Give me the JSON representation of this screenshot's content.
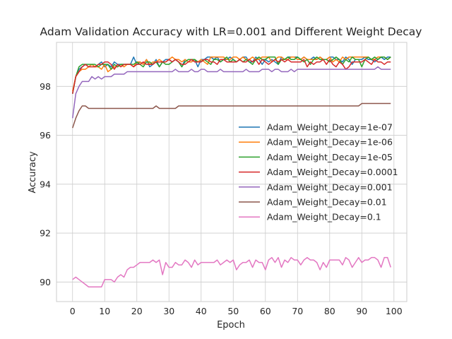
{
  "chart_data": {
    "type": "line",
    "title": "Adam Validation Accuracy with LR=0.001 and Different Weight Decay",
    "xlabel": "Epoch",
    "ylabel": "Accuracy",
    "xlim": [
      -5,
      104
    ],
    "ylim": [
      89.2,
      99.8
    ],
    "xticks": [
      0,
      10,
      20,
      30,
      40,
      50,
      60,
      70,
      80,
      90,
      100
    ],
    "yticks": [
      90,
      92,
      94,
      96,
      98
    ],
    "grid": true,
    "legend_position": "center-right",
    "series": [
      {
        "name": "Adam_Weight_Decay=1e-07",
        "color": "#1f77b4",
        "values": [
          97.7,
          98.4,
          98.7,
          98.8,
          98.9,
          98.8,
          98.9,
          98.8,
          98.9,
          99.0,
          98.8,
          98.9,
          98.8,
          99.0,
          98.9,
          98.9,
          98.9,
          98.9,
          98.9,
          99.2,
          98.9,
          99.0,
          98.9,
          99.1,
          98.8,
          98.9,
          99.1,
          98.8,
          99.0,
          99.1,
          99.1,
          99.0,
          99.1,
          99.0,
          98.8,
          99.1,
          99.0,
          99.0,
          99.1,
          98.8,
          99.1,
          99.1,
          99.2,
          99.2,
          99.1,
          99.2,
          99.0,
          99.1,
          99.1,
          99.2,
          99.1,
          99.0,
          99.1,
          99.2,
          99.2,
          99.0,
          99.0,
          99.2,
          99.1,
          98.9,
          99.1,
          99.0,
          99.1,
          99.0,
          98.9,
          99.2,
          99.1,
          99.2,
          99.2,
          99.2,
          99.2,
          99.1,
          99.2,
          99.1,
          99.1,
          99.2,
          99.1,
          99.2,
          99.1,
          99.1,
          99.2,
          99.2,
          99.1,
          99.1,
          99.0,
          99.2,
          99.1,
          98.9,
          99.1,
          99.1,
          99.1,
          99.2,
          99.1,
          99.1,
          99.0,
          99.1,
          99.2,
          99.1,
          99.2,
          99.2
        ]
      },
      {
        "name": "Adam_Weight_Decay=1e-06",
        "color": "#ff7f0e",
        "values": [
          97.8,
          98.4,
          98.6,
          98.7,
          98.7,
          98.8,
          98.9,
          98.8,
          98.8,
          98.7,
          98.9,
          98.6,
          98.7,
          98.8,
          98.8,
          98.9,
          98.8,
          98.9,
          98.9,
          98.8,
          99.0,
          99.0,
          98.9,
          99.1,
          98.9,
          99.0,
          99.0,
          99.1,
          99.0,
          99.0,
          99.1,
          99.2,
          99.1,
          99.1,
          99.0,
          99.1,
          99.0,
          99.0,
          99.1,
          99.0,
          99.1,
          99.0,
          98.9,
          99.2,
          99.2,
          99.2,
          99.2,
          99.2,
          99.1,
          99.1,
          99.2,
          99.2,
          99.1,
          99.2,
          99.1,
          99.1,
          99.2,
          99.1,
          99.1,
          99.2,
          99.2,
          99.2,
          99.0,
          99.1,
          99.2,
          99.2,
          99.1,
          99.1,
          99.2,
          99.2,
          99.1,
          99.1,
          99.2,
          99.1,
          99.1,
          99.1,
          99.1,
          99.2,
          99.1,
          99.1,
          99.2,
          99.0,
          99.1,
          99.0,
          99.2,
          99.1,
          99.2,
          99.2,
          99.2,
          99.2,
          99.2,
          99.2,
          99.2,
          99.1,
          99.1,
          99.2,
          99.2,
          99.2,
          99.1,
          99.2
        ]
      },
      {
        "name": "Adam_Weight_Decay=1e-05",
        "color": "#2ca02c",
        "values": [
          97.7,
          98.4,
          98.8,
          98.9,
          98.9,
          98.9,
          98.9,
          98.9,
          98.8,
          98.9,
          98.9,
          98.9,
          98.7,
          98.9,
          98.8,
          98.9,
          98.9,
          98.9,
          98.9,
          98.9,
          99.0,
          98.9,
          98.8,
          99.0,
          99.0,
          98.9,
          99.0,
          98.8,
          99.0,
          98.9,
          98.9,
          99.0,
          99.1,
          99.0,
          98.8,
          99.0,
          99.1,
          99.1,
          99.1,
          99.0,
          99.0,
          99.1,
          99.0,
          98.9,
          99.1,
          99.1,
          99.0,
          99.1,
          99.2,
          99.0,
          99.1,
          99.0,
          99.1,
          99.0,
          99.1,
          99.0,
          98.9,
          99.1,
          99.2,
          99.1,
          99.1,
          99.2,
          99.2,
          99.2,
          98.9,
          99.1,
          99.1,
          99.2,
          99.1,
          99.1,
          99.2,
          99.1,
          99.0,
          99.1,
          98.9,
          99.1,
          99.2,
          99.1,
          99.1,
          99.1,
          99.0,
          99.1,
          99.2,
          99.1,
          98.9,
          99.1,
          99.0,
          99.2,
          99.1,
          99.1,
          98.8,
          99.1,
          99.2,
          99.1,
          99.2,
          99.1,
          99.2,
          99.2,
          99.1,
          99.2
        ]
      },
      {
        "name": "Adam_Weight_Decay=0.0001",
        "color": "#d62728",
        "values": [
          97.7,
          98.4,
          98.6,
          98.8,
          98.9,
          98.8,
          98.8,
          98.8,
          98.9,
          98.9,
          99.0,
          99.0,
          98.9,
          98.7,
          98.9,
          98.8,
          98.9,
          98.9,
          98.9,
          98.8,
          98.9,
          98.9,
          99.0,
          98.9,
          98.9,
          98.9,
          99.0,
          99.0,
          99.0,
          99.0,
          99.1,
          99.0,
          99.1,
          99.0,
          98.9,
          98.9,
          99.0,
          99.1,
          99.0,
          99.0,
          99.0,
          99.1,
          99.1,
          99.0,
          99.0,
          98.9,
          99.1,
          99.1,
          99.0,
          99.0,
          99.0,
          99.0,
          99.1,
          99.0,
          99.0,
          99.1,
          99.0,
          99.1,
          98.9,
          99.1,
          99.0,
          98.9,
          99.0,
          99.1,
          99.0,
          99.1,
          99.0,
          99.1,
          99.0,
          99.0,
          99.0,
          99.0,
          99.1,
          98.8,
          99.0,
          98.9,
          99.0,
          99.0,
          99.1,
          98.9,
          99.1,
          98.9,
          98.8,
          99.0,
          98.9,
          98.7,
          98.8,
          99.0,
          99.0,
          99.0,
          99.0,
          99.1,
          99.0,
          98.9,
          99.1,
          99.0,
          99.0,
          98.9,
          99.0,
          99.0
        ]
      },
      {
        "name": "Adam_Weight_Decay=0.001",
        "color": "#9467bd",
        "values": [
          96.7,
          97.7,
          98.0,
          98.2,
          98.2,
          98.2,
          98.4,
          98.3,
          98.4,
          98.3,
          98.4,
          98.4,
          98.4,
          98.5,
          98.5,
          98.5,
          98.5,
          98.6,
          98.6,
          98.6,
          98.6,
          98.6,
          98.6,
          98.6,
          98.6,
          98.6,
          98.6,
          98.6,
          98.6,
          98.6,
          98.6,
          98.6,
          98.7,
          98.6,
          98.6,
          98.6,
          98.6,
          98.7,
          98.6,
          98.6,
          98.7,
          98.7,
          98.6,
          98.6,
          98.6,
          98.6,
          98.7,
          98.6,
          98.6,
          98.6,
          98.6,
          98.6,
          98.6,
          98.6,
          98.7,
          98.6,
          98.6,
          98.6,
          98.6,
          98.7,
          98.7,
          98.7,
          98.6,
          98.7,
          98.7,
          98.6,
          98.6,
          98.6,
          98.7,
          98.6,
          98.7,
          98.7,
          98.7,
          98.7,
          98.7,
          98.7,
          98.7,
          98.7,
          98.7,
          98.7,
          98.7,
          98.7,
          98.7,
          98.7,
          98.7,
          98.7,
          98.7,
          98.7,
          98.7,
          98.7,
          98.7,
          98.7,
          98.7,
          98.7,
          98.7,
          98.8,
          98.7,
          98.7,
          98.7,
          98.7
        ]
      },
      {
        "name": "Adam_Weight_Decay=0.01",
        "color": "#8c564b",
        "values": [
          96.3,
          96.7,
          97.0,
          97.2,
          97.2,
          97.1,
          97.1,
          97.1,
          97.1,
          97.1,
          97.1,
          97.1,
          97.1,
          97.1,
          97.1,
          97.1,
          97.1,
          97.1,
          97.1,
          97.1,
          97.1,
          97.1,
          97.1,
          97.1,
          97.1,
          97.1,
          97.2,
          97.1,
          97.1,
          97.1,
          97.1,
          97.1,
          97.1,
          97.2,
          97.2,
          97.2,
          97.2,
          97.2,
          97.2,
          97.2,
          97.2,
          97.2,
          97.2,
          97.2,
          97.2,
          97.2,
          97.2,
          97.2,
          97.2,
          97.2,
          97.2,
          97.2,
          97.2,
          97.2,
          97.2,
          97.2,
          97.2,
          97.2,
          97.2,
          97.2,
          97.2,
          97.2,
          97.2,
          97.2,
          97.2,
          97.2,
          97.2,
          97.2,
          97.2,
          97.2,
          97.2,
          97.2,
          97.2,
          97.2,
          97.2,
          97.2,
          97.2,
          97.2,
          97.2,
          97.2,
          97.2,
          97.2,
          97.2,
          97.2,
          97.2,
          97.2,
          97.2,
          97.2,
          97.2,
          97.2,
          97.3,
          97.3,
          97.3,
          97.3,
          97.3,
          97.3,
          97.3,
          97.3,
          97.3,
          97.3
        ]
      },
      {
        "name": "Adam_Weight_Decay=0.1",
        "color": "#e377c2",
        "values": [
          90.1,
          90.2,
          90.1,
          90.0,
          89.9,
          89.8,
          89.8,
          89.8,
          89.8,
          89.8,
          90.1,
          90.1,
          90.1,
          90.0,
          90.2,
          90.3,
          90.2,
          90.5,
          90.6,
          90.6,
          90.7,
          90.8,
          90.8,
          90.8,
          90.8,
          90.9,
          90.8,
          90.9,
          90.3,
          90.8,
          90.6,
          90.6,
          90.8,
          90.7,
          90.7,
          90.9,
          90.8,
          90.6,
          90.9,
          90.7,
          90.8,
          90.8,
          90.8,
          90.8,
          90.8,
          90.9,
          90.7,
          90.8,
          90.9,
          90.8,
          90.9,
          90.5,
          90.7,
          90.8,
          90.8,
          90.9,
          90.6,
          90.9,
          90.8,
          90.8,
          90.5,
          90.9,
          91.0,
          90.8,
          91.0,
          90.6,
          90.9,
          90.8,
          91.0,
          90.9,
          90.9,
          90.7,
          90.9,
          91.0,
          90.9,
          90.9,
          90.8,
          90.5,
          90.8,
          90.6,
          90.9,
          90.9,
          90.9,
          90.9,
          90.7,
          91.0,
          90.9,
          90.6,
          90.8,
          91.0,
          90.8,
          90.9,
          90.9,
          91.0,
          91.0,
          90.9,
          90.6,
          91.0,
          91.0,
          90.6
        ]
      }
    ]
  }
}
